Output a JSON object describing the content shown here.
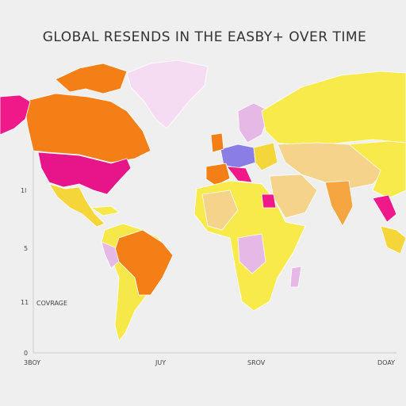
{
  "title": "GLOBAL RESENDS IN THE EASBY+ OVER TIME",
  "side_labels": [
    "1l",
    "5",
    "11",
    "0"
  ],
  "bottom_labels": [
    "3BOY",
    "JUY",
    "SROV",
    "DOAY"
  ],
  "map_label": "COVRAGE"
}
